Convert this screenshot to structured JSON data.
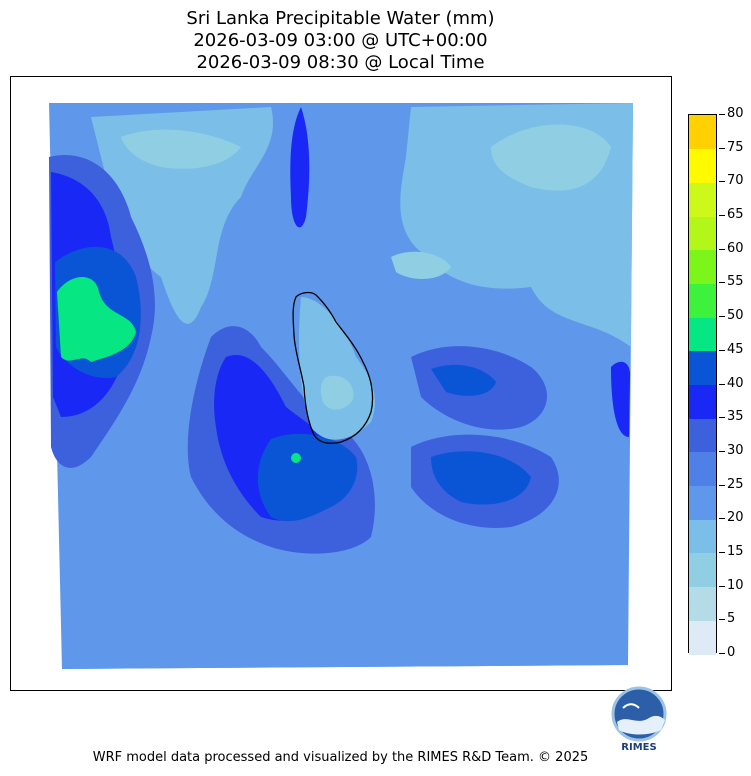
{
  "title": {
    "line1": "Sri Lanka Precipitable Water (mm)",
    "line2": "2026-03-09 03:00 @ UTC+00:00",
    "line3": "2026-03-09 08:30 @ Local Time"
  },
  "colorbar": {
    "levels": [
      0,
      5,
      10,
      15,
      20,
      25,
      30,
      35,
      40,
      45,
      50,
      55,
      60,
      65,
      70,
      75,
      80
    ],
    "colors": [
      "#deebf7",
      "#b3dce6",
      "#90cfe3",
      "#7bbfe8",
      "#5f98ea",
      "#4f80e6",
      "#3d60dc",
      "#1a28f5",
      "#0a55d6",
      "#06e683",
      "#3cf23c",
      "#7cf51a",
      "#b3f61a",
      "#ccf81a",
      "#fffa00",
      "#ffd100"
    ]
  },
  "logo": {
    "text": "RIMES"
  },
  "footer": "WRF model data processed and visualized by the RIMES R&D Team. © 2025",
  "palette": {
    "background_ocean": "#5f98ea",
    "light_regions": "#7bbfe8",
    "mid_regions": "#4f80e6",
    "dark_regions": "#3d60dc",
    "deep_regions": "#1a28f5",
    "high_regions": "#06e683",
    "island_core": "#90cfe3"
  }
}
